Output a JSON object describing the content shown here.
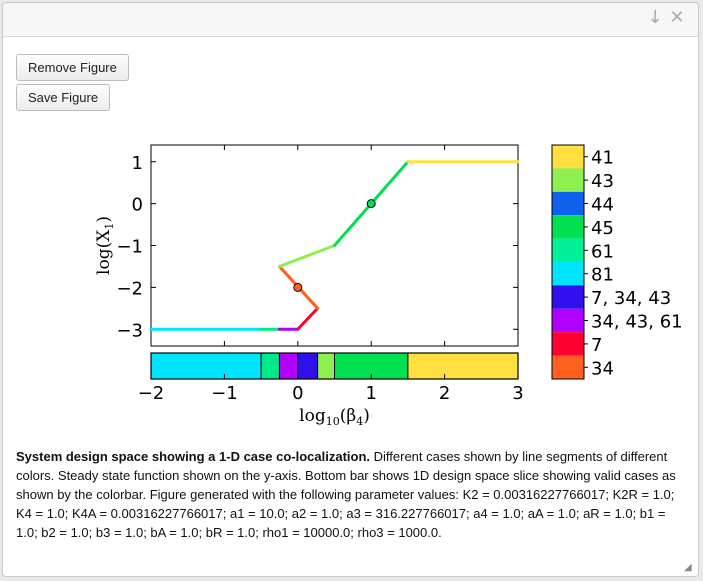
{
  "window": {
    "collapse_icon": "arrow-down-icon",
    "close_icon": "close-icon"
  },
  "toolbar": {
    "remove_label": "Remove Figure",
    "save_label": "Save Figure"
  },
  "chart_data": [
    {
      "type": "line",
      "title": "",
      "xlabel": "log10(β4)",
      "ylabel": "log(X1)",
      "xlim": [
        -2,
        3
      ],
      "ylim": [
        -3.4,
        1.4
      ],
      "xticks": [
        "−2",
        "−1",
        "0",
        "1",
        "2",
        "3"
      ],
      "yticks": [
        "1",
        "0",
        "−1",
        "−2",
        "−3"
      ],
      "grid": false,
      "segments": [
        {
          "case": "81",
          "color": "#00e5ff",
          "points": [
            [
              -2,
              -3
            ],
            [
              -0.5,
              -3
            ]
          ]
        },
        {
          "case": "61",
          "color": "#00e888",
          "points": [
            [
              -0.5,
              -3
            ],
            [
              -0.25,
              -3
            ]
          ]
        },
        {
          "case": "34, 43, 61",
          "color": "#b000ff",
          "points": [
            [
              -0.25,
              -3
            ],
            [
              0,
              -3
            ]
          ]
        },
        {
          "case": "7",
          "color": "#ff0033",
          "points": [
            [
              0,
              -3
            ],
            [
              0.27,
              -2.5
            ]
          ]
        },
        {
          "case": "34",
          "color": "#ff6020",
          "points": [
            [
              0.27,
              -2.5
            ],
            [
              -0.25,
              -1.5
            ]
          ]
        },
        {
          "case": "43",
          "color": "#8ef050",
          "points": [
            [
              -0.25,
              -1.5
            ],
            [
              0.5,
              -1
            ]
          ]
        },
        {
          "case": "45",
          "color": "#00e050",
          "points": [
            [
              0.5,
              -1
            ],
            [
              1.5,
              1
            ]
          ]
        },
        {
          "case": "41",
          "color": "#ffe040",
          "points": [
            [
              1.5,
              1
            ],
            [
              3,
              1
            ]
          ]
        }
      ],
      "markers": [
        {
          "x": 0,
          "y": -2,
          "color": "#ff6020"
        },
        {
          "x": 1,
          "y": 0,
          "color": "#00e050"
        }
      ],
      "design_space_bar": [
        {
          "case": "81",
          "from": -2,
          "to": -0.5,
          "color": "#00e5ff"
        },
        {
          "case": "61",
          "from": -0.5,
          "to": -0.25,
          "color": "#00e888"
        },
        {
          "case": "34, 43, 61",
          "from": -0.25,
          "to": 0,
          "color": "#b000ff"
        },
        {
          "case": "7, 34, 43",
          "from": 0,
          "to": 0.27,
          "color": "#3010ee"
        },
        {
          "case": "43",
          "from": 0.27,
          "to": 0.5,
          "color": "#8ef050"
        },
        {
          "case": "45",
          "from": 0.5,
          "to": 1.5,
          "color": "#00e050"
        },
        {
          "case": "41",
          "from": 1.5,
          "to": 3,
          "color": "#ffe040"
        }
      ]
    },
    {
      "type": "colorbar",
      "entries": [
        {
          "label": "41",
          "color": "#ffe040"
        },
        {
          "label": "43",
          "color": "#8ef050"
        },
        {
          "label": "44",
          "color": "#1060ee"
        },
        {
          "label": "45",
          "color": "#00e050"
        },
        {
          "label": "61",
          "color": "#00f09a"
        },
        {
          "label": "81",
          "color": "#00e5ff"
        },
        {
          "label": "7, 34, 43",
          "color": "#3010ee"
        },
        {
          "label": "34, 43, 61",
          "color": "#b000ff"
        },
        {
          "label": "7",
          "color": "#ff0033"
        },
        {
          "label": "34",
          "color": "#ff6020"
        }
      ]
    }
  ],
  "caption": {
    "bold": "System design space showing a 1-D case co-localization.",
    "text": " Different cases shown by line segments of different colors. Steady state function shown on the y-axis. Bottom bar shows 1D design space slice showing valid cases as shown by the colorbar. Figure generated with the following parameter values: K2 = 0.00316227766017; K2R = 1.0; K4 = 1.0; K4A = 0.00316227766017; a1 = 10.0; a2 = 1.0; a3 = 316.227766017; a4 = 1.0; aA = 1.0; aR = 1.0; b1 = 1.0; b2 = 1.0; b3 = 1.0; bA = 1.0; bR = 1.0; rho1 = 10000.0; rho3 = 1000.0."
  }
}
